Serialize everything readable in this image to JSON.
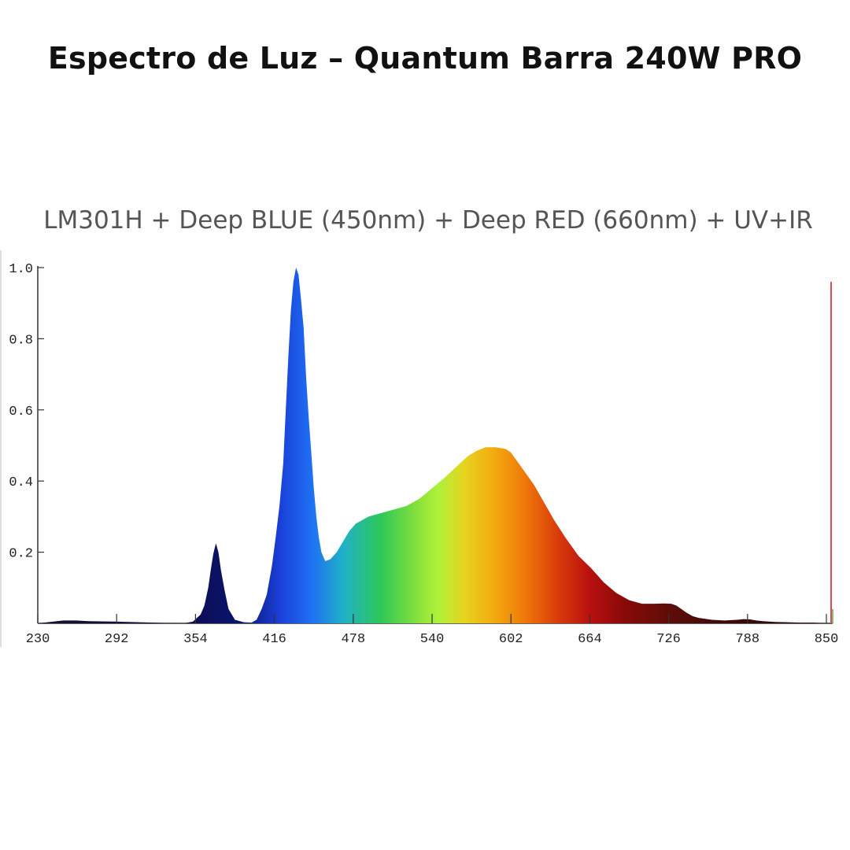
{
  "page": {
    "title": "Espectro de Luz – Quantum Barra 240W PRO"
  },
  "chart_data": {
    "type": "area",
    "title": "LM301H + Deep BLUE (450nm) + Deep RED (660nm) + UV+IR",
    "xlabel": "",
    "ylabel": "",
    "xlim": [
      230,
      850
    ],
    "ylim": [
      0,
      1.0
    ],
    "grid": false,
    "x_ticks": [
      230,
      292,
      354,
      416,
      478,
      540,
      602,
      664,
      726,
      788,
      850
    ],
    "x_tick_labels": [
      "230",
      "292",
      "354",
      "416",
      "478",
      "540",
      "602",
      "664",
      "726",
      "788",
      "850"
    ],
    "y_ticks": [
      0.2,
      0.4,
      0.6,
      0.8,
      1.0
    ],
    "y_tick_labels": [
      "0.2",
      "0.4",
      "0.6",
      "0.8",
      "1.0"
    ],
    "series": [
      {
        "x": [
          230,
          250,
          260,
          270,
          290,
          310,
          330,
          345,
          352,
          358,
          361,
          364,
          366,
          368,
          370,
          372,
          374,
          377,
          380,
          385,
          392,
          398,
          402,
          406,
          410,
          414,
          417,
          420,
          423,
          425,
          427,
          429,
          431,
          433,
          435,
          437,
          439,
          440,
          441,
          443,
          445,
          447,
          449,
          451,
          453,
          456,
          460,
          465,
          470,
          475,
          480,
          490,
          500,
          510,
          520,
          530,
          540,
          550,
          556,
          562,
          568,
          575,
          582,
          590,
          598,
          602,
          606,
          612,
          620,
          628,
          636,
          645,
          655,
          665,
          675,
          685,
          695,
          705,
          715,
          722,
          728,
          732,
          736,
          740,
          745,
          750,
          760,
          770,
          780,
          785,
          790,
          795,
          800,
          810,
          820,
          830,
          840,
          850
        ],
        "y": [
          0,
          0.008,
          0.008,
          0.006,
          0.005,
          0.003,
          0.001,
          0.0,
          0.005,
          0.025,
          0.05,
          0.1,
          0.15,
          0.195,
          0.225,
          0.2,
          0.15,
          0.09,
          0.04,
          0.01,
          0.003,
          0.002,
          0.01,
          0.04,
          0.08,
          0.16,
          0.24,
          0.33,
          0.45,
          0.6,
          0.75,
          0.88,
          0.96,
          1.0,
          0.98,
          0.91,
          0.83,
          0.76,
          0.69,
          0.58,
          0.48,
          0.38,
          0.3,
          0.24,
          0.2,
          0.175,
          0.18,
          0.2,
          0.23,
          0.26,
          0.28,
          0.3,
          0.31,
          0.32,
          0.33,
          0.35,
          0.38,
          0.41,
          0.43,
          0.45,
          0.47,
          0.485,
          0.495,
          0.495,
          0.49,
          0.48,
          0.46,
          0.43,
          0.39,
          0.34,
          0.29,
          0.24,
          0.19,
          0.155,
          0.115,
          0.085,
          0.065,
          0.055,
          0.055,
          0.056,
          0.055,
          0.05,
          0.04,
          0.03,
          0.02,
          0.015,
          0.01,
          0.008,
          0.01,
          0.012,
          0.011,
          0.008,
          0.006,
          0.004,
          0.003,
          0.002,
          0.002,
          0.0
        ]
      }
    ],
    "vertical_line": {
      "x": 850,
      "y": 0.96,
      "color": "#e8475a"
    },
    "gradient_stops": [
      {
        "nm": 230,
        "color": "#101030"
      },
      {
        "nm": 354,
        "color": "#0d0d55"
      },
      {
        "nm": 390,
        "color": "#0a1670"
      },
      {
        "nm": 420,
        "color": "#1a3fd8"
      },
      {
        "nm": 445,
        "color": "#1f6ff2"
      },
      {
        "nm": 470,
        "color": "#1fb1c8"
      },
      {
        "nm": 500,
        "color": "#2ec857"
      },
      {
        "nm": 530,
        "color": "#8be23a"
      },
      {
        "nm": 545,
        "color": "#aef23a"
      },
      {
        "nm": 565,
        "color": "#e6d41f"
      },
      {
        "nm": 590,
        "color": "#f2a80f"
      },
      {
        "nm": 612,
        "color": "#f07a0a"
      },
      {
        "nm": 640,
        "color": "#d83a0a"
      },
      {
        "nm": 664,
        "color": "#b81010"
      },
      {
        "nm": 690,
        "color": "#8a0a08"
      },
      {
        "nm": 730,
        "color": "#5a0d08"
      },
      {
        "nm": 770,
        "color": "#3a0a08"
      },
      {
        "nm": 850,
        "color": "#2a0a0a"
      }
    ]
  }
}
